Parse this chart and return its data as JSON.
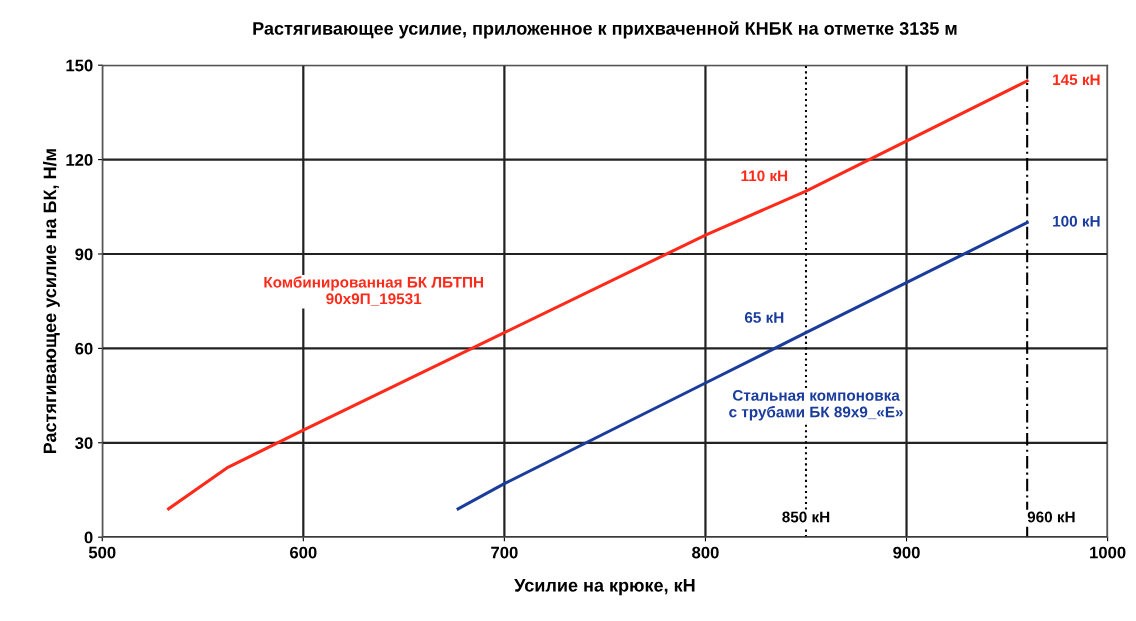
{
  "chart_data": {
    "type": "line",
    "title": "Растягивающее усилие, приложенное к прихваченной КНБК на отметке 3135 м",
    "xlabel": "Усилие на крюке, кН",
    "ylabel": "Растягивающее усилие на БК, Н/м",
    "series": [
      {
        "name": "Комбинированная БК ЛБТПН\n90х9П_19531",
        "color": "#ff2a1a",
        "x": [
          533,
          562,
          600,
          700,
          800,
          850,
          960
        ],
        "values": [
          9,
          22,
          34,
          65,
          96,
          110,
          145
        ],
        "value_labels": [
          null,
          null,
          null,
          null,
          null,
          "110 кН",
          "145 кН"
        ]
      },
      {
        "name": "Стальная компоновка\nс трубами БК 89х9_«Е»",
        "color": "#1a3c9c",
        "x": [
          677,
          700,
          800,
          850,
          960
        ],
        "values": [
          9,
          17,
          49,
          65,
          100
        ],
        "value_labels": [
          null,
          null,
          null,
          "65 кН",
          "100 кН"
        ]
      }
    ],
    "ref_lines": [
      {
        "axis": "x",
        "value": 850,
        "label": "850 кН",
        "line_style": "dotted"
      },
      {
        "axis": "x",
        "value": 960,
        "label": "960 кН",
        "line_style": "dashed"
      }
    ],
    "xlim": [
      500,
      1000
    ],
    "xticks": [
      500,
      600,
      700,
      800,
      900,
      1000
    ],
    "ylim": [
      0,
      150
    ],
    "yticks": [
      0,
      30,
      60,
      90,
      120,
      150
    ],
    "grid": true,
    "marker": "none",
    "line_style": "solid"
  }
}
